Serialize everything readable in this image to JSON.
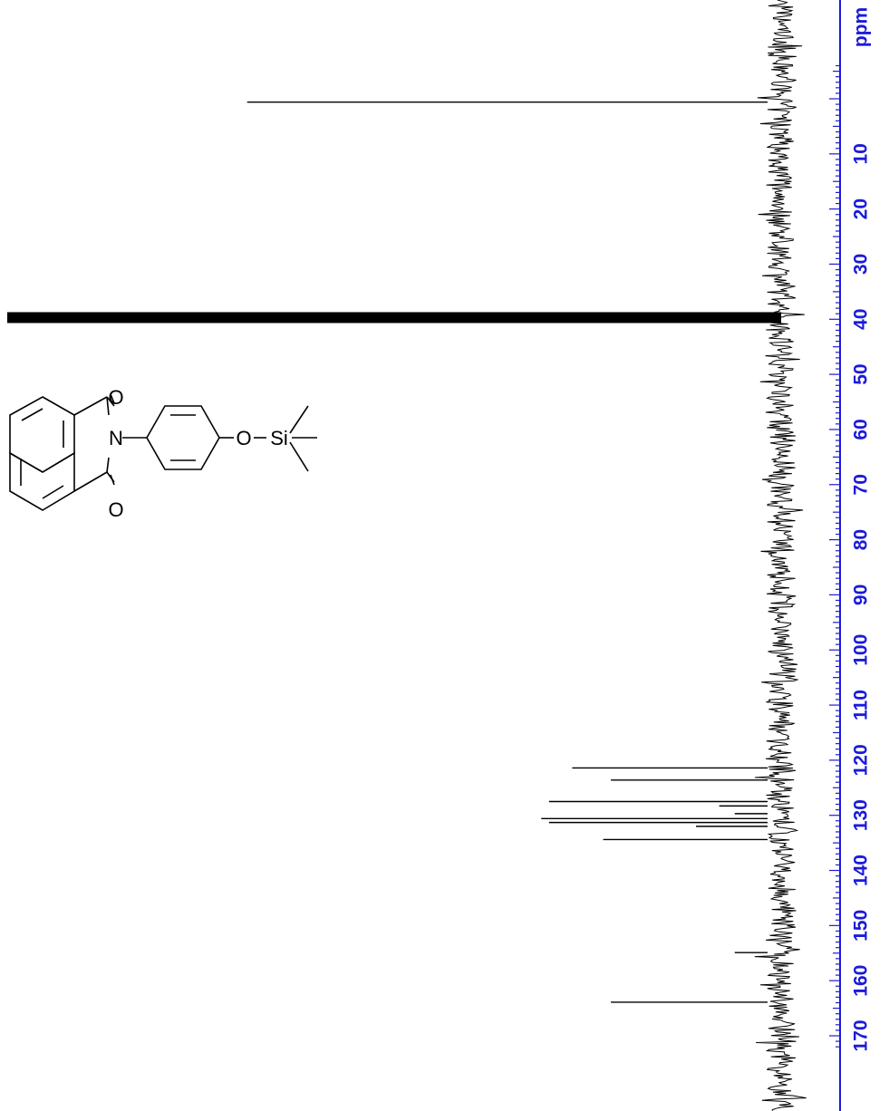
{
  "chart_data": {
    "type": "line",
    "title": "",
    "xlabel": "",
    "ylabel": "ppm",
    "orientation": "vertical-ppm-axis",
    "ylim": [
      -7,
      172
    ],
    "y_ticks": [
      10,
      20,
      30,
      40,
      50,
      60,
      70,
      80,
      90,
      100,
      110,
      120,
      130,
      140,
      150,
      160,
      170
    ],
    "grid": false,
    "legend": "none",
    "colors": {
      "axis": "#1a1adb",
      "trace": "#000000"
    },
    "series": [
      {
        "peaks": [
          {
            "ppm": 0.6,
            "intensity": 0.69
          },
          {
            "ppm": 39.7,
            "intensity": 1.0
          },
          {
            "ppm": 121.4,
            "intensity": 0.27
          },
          {
            "ppm": 123.6,
            "intensity": 0.22
          },
          {
            "ppm": 127.5,
            "intensity": 0.3
          },
          {
            "ppm": 128.3,
            "intensity": 0.08
          },
          {
            "ppm": 129.7,
            "intensity": 0.06
          },
          {
            "ppm": 130.6,
            "intensity": 0.31
          },
          {
            "ppm": 131.3,
            "intensity": 0.3
          },
          {
            "ppm": 132.0,
            "intensity": 0.11
          },
          {
            "ppm": 134.4,
            "intensity": 0.23
          },
          {
            "ppm": 154.9,
            "intensity": 0.06
          },
          {
            "ppm": 163.9,
            "intensity": 0.22
          }
        ]
      }
    ]
  },
  "structure": {
    "atom_labels": {
      "o_top": "O",
      "o_bottom": "O",
      "n": "N",
      "o_ether": "O",
      "si": "Si"
    }
  }
}
